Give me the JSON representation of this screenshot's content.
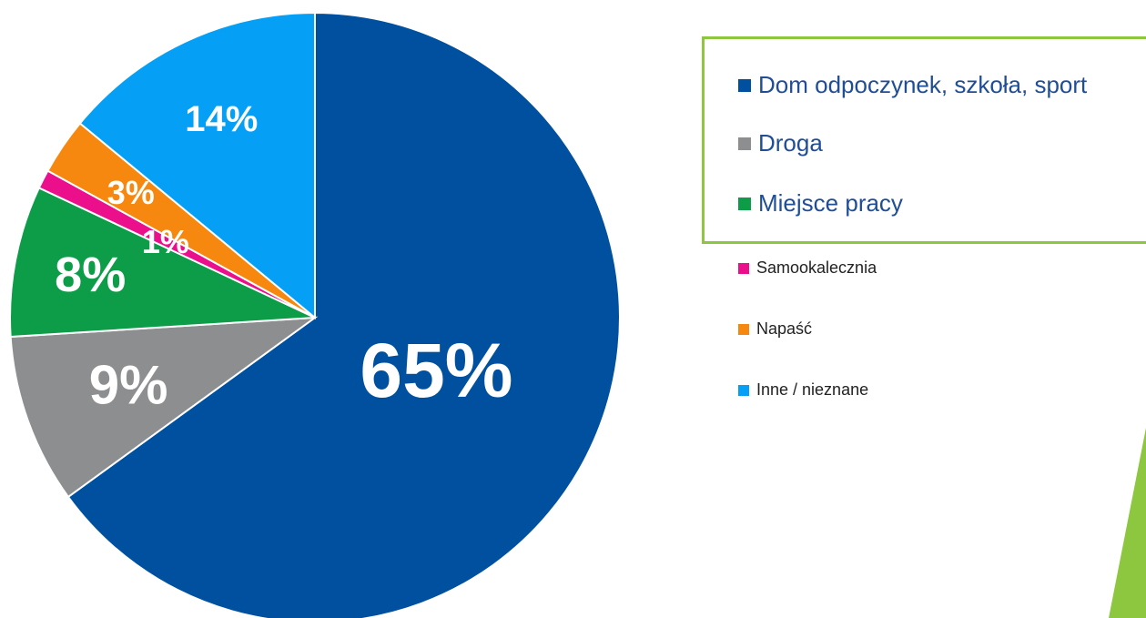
{
  "chart_data": {
    "type": "pie",
    "slices": [
      {
        "label": "Dom odpoczynek, szkoła, sport",
        "value": 65,
        "display": "65%",
        "color": "#0050a0"
      },
      {
        "label": "Droga",
        "value": 9,
        "display": "9%",
        "color": "#8c8e90"
      },
      {
        "label": "Miejsce pracy",
        "value": 8,
        "display": "8%",
        "color": "#0d9c48"
      },
      {
        "label": "Samookalecznia",
        "value": 1,
        "display": "1%",
        "color": "#ec0f8c"
      },
      {
        "label": "Napaść",
        "value": 3,
        "display": "3%",
        "color": "#f7880f"
      },
      {
        "label": "Inne / nieznane",
        "value": 14,
        "display": "14%",
        "color": "#05a0f5"
      }
    ],
    "legend_position": "right"
  },
  "accent_color": "#8dc63f"
}
